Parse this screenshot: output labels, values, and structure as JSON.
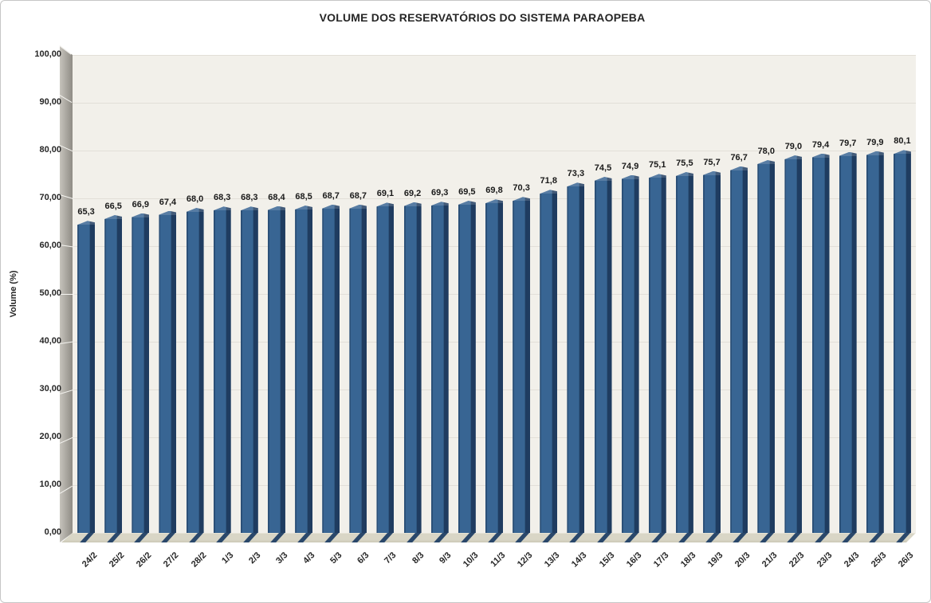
{
  "chart_data": {
    "type": "bar",
    "title": "VOLUME DOS RESERVATÓRIOS DO SISTEMA PARAOPEBA",
    "xlabel": "",
    "ylabel": "Volume (%)",
    "ylim": [
      0,
      100
    ],
    "y_tick_step": 10,
    "y_tick_labels": [
      "0,00",
      "10,00",
      "20,00",
      "30,00",
      "40,00",
      "50,00",
      "60,00",
      "70,00",
      "80,00",
      "90,00",
      "100,00"
    ],
    "grid": true,
    "legend": "none",
    "categories": [
      "24/2",
      "25/2",
      "26/2",
      "27/2",
      "28/2",
      "1/3",
      "2/3",
      "3/3",
      "4/3",
      "5/3",
      "6/3",
      "7/3",
      "8/3",
      "9/3",
      "10/3",
      "11/3",
      "12/3",
      "13/3",
      "14/3",
      "15/3",
      "16/3",
      "17/3",
      "18/3",
      "19/3",
      "20/3",
      "21/3",
      "22/3",
      "23/3",
      "24/3",
      "25/3",
      "26/3"
    ],
    "values": [
      65.3,
      66.5,
      66.9,
      67.4,
      68.0,
      68.3,
      68.3,
      68.4,
      68.5,
      68.7,
      68.7,
      69.1,
      69.2,
      69.3,
      69.5,
      69.8,
      70.3,
      71.8,
      73.3,
      74.5,
      74.9,
      75.1,
      75.5,
      75.7,
      76.7,
      78.0,
      79.0,
      79.4,
      79.7,
      79.9,
      80.1
    ],
    "value_labels": [
      "65,3",
      "66,5",
      "66,9",
      "67,4",
      "68,0",
      "68,3",
      "68,3",
      "68,4",
      "68,5",
      "68,7",
      "68,7",
      "69,1",
      "69,2",
      "69,3",
      "69,5",
      "69,8",
      "70,3",
      "71,8",
      "73,3",
      "74,5",
      "74,9",
      "75,1",
      "75,5",
      "75,7",
      "76,7",
      "78,0",
      "79,0",
      "79,4",
      "79,7",
      "79,9",
      "80,1"
    ],
    "colors": {
      "bar_face": "#386593",
      "bar_face_inner_edge": "#2F5881",
      "bar_side": "#1F3C60",
      "bar_edge": "#2B5078",
      "bar_foot": "#2A486B",
      "plot_bg": "#F2F0EA",
      "gridline": "#E2DFD8",
      "wall_light": "#C6C3BC",
      "wall_dark": "#8F8C85",
      "wall_mark": "#F6F5F1",
      "floor_top": "#E6E3D6",
      "floor_mid": "#D9D6C6",
      "floor_bottom": "#CBC8B7",
      "text": "#262626"
    }
  }
}
